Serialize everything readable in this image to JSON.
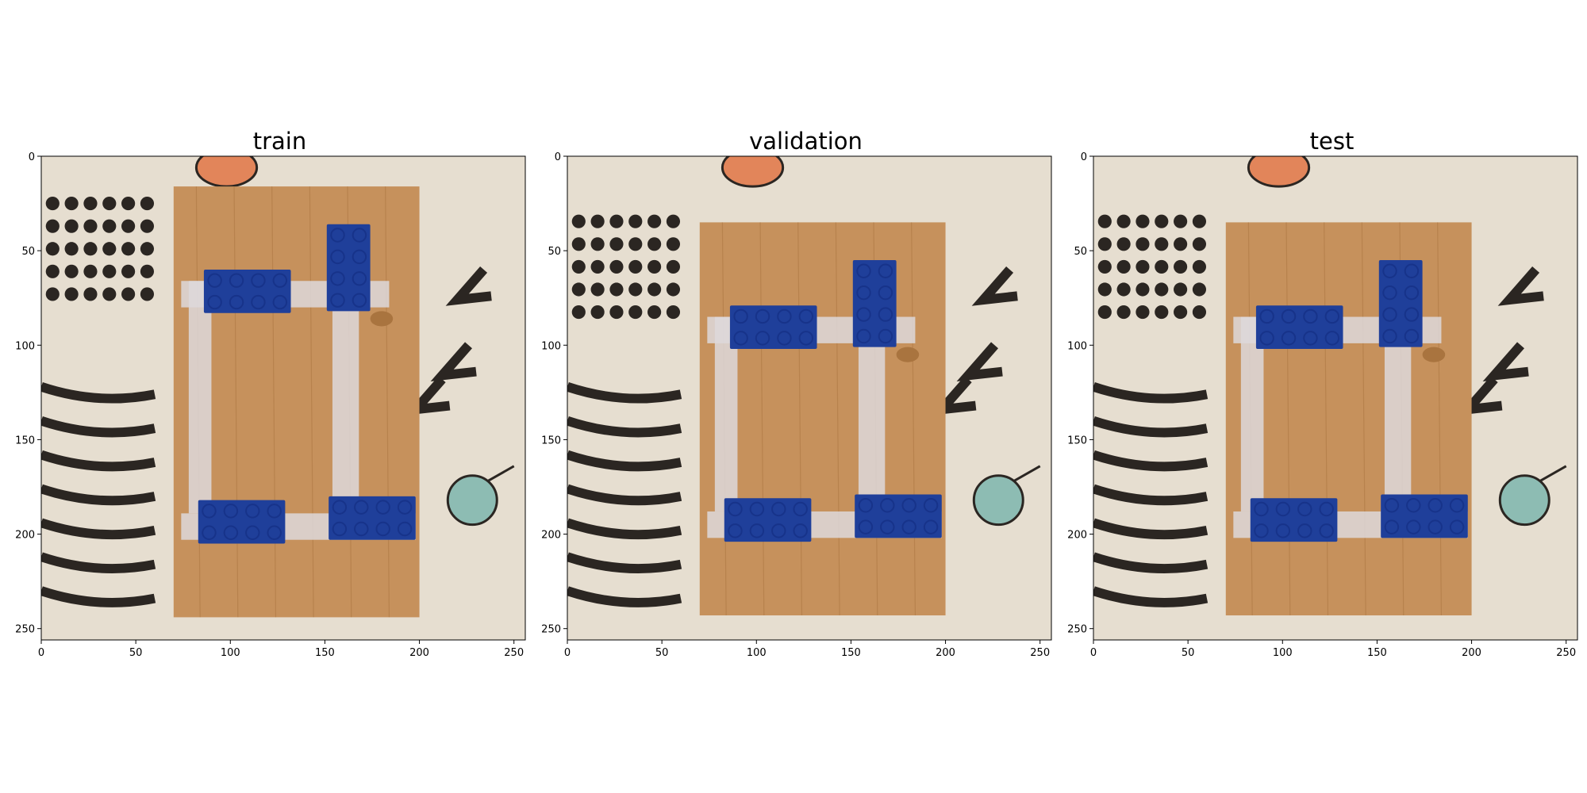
{
  "figure": {
    "panels": [
      {
        "title": "train",
        "board_top": 16,
        "board_bottom": 244,
        "xticks": [
          "0",
          "50",
          "100",
          "150",
          "200",
          "250"
        ],
        "yticks": [
          "0",
          "50",
          "100",
          "150",
          "200",
          "250"
        ]
      },
      {
        "title": "validation",
        "board_top": 35,
        "board_bottom": 243,
        "xticks": [
          "0",
          "50",
          "100",
          "150",
          "200",
          "250"
        ],
        "yticks": [
          "0",
          "50",
          "100",
          "150",
          "200",
          "250"
        ]
      },
      {
        "title": "test",
        "board_top": 35,
        "board_bottom": 243,
        "xticks": [
          "0",
          "50",
          "100",
          "150",
          "200",
          "250"
        ],
        "yticks": [
          "0",
          "50",
          "100",
          "150",
          "200",
          "250"
        ]
      }
    ],
    "axis_range": [
      0,
      256
    ],
    "colors": {
      "background": "#e6ded0",
      "wood": "#c6915c",
      "wood_dark": "#a9743f",
      "tape": "#ddd8da",
      "brick": "#1f3f9a",
      "brick_stud": "#17338a",
      "ink": "#2b2622",
      "orange": "#e2855a",
      "teal": "#8dbcb3"
    }
  }
}
